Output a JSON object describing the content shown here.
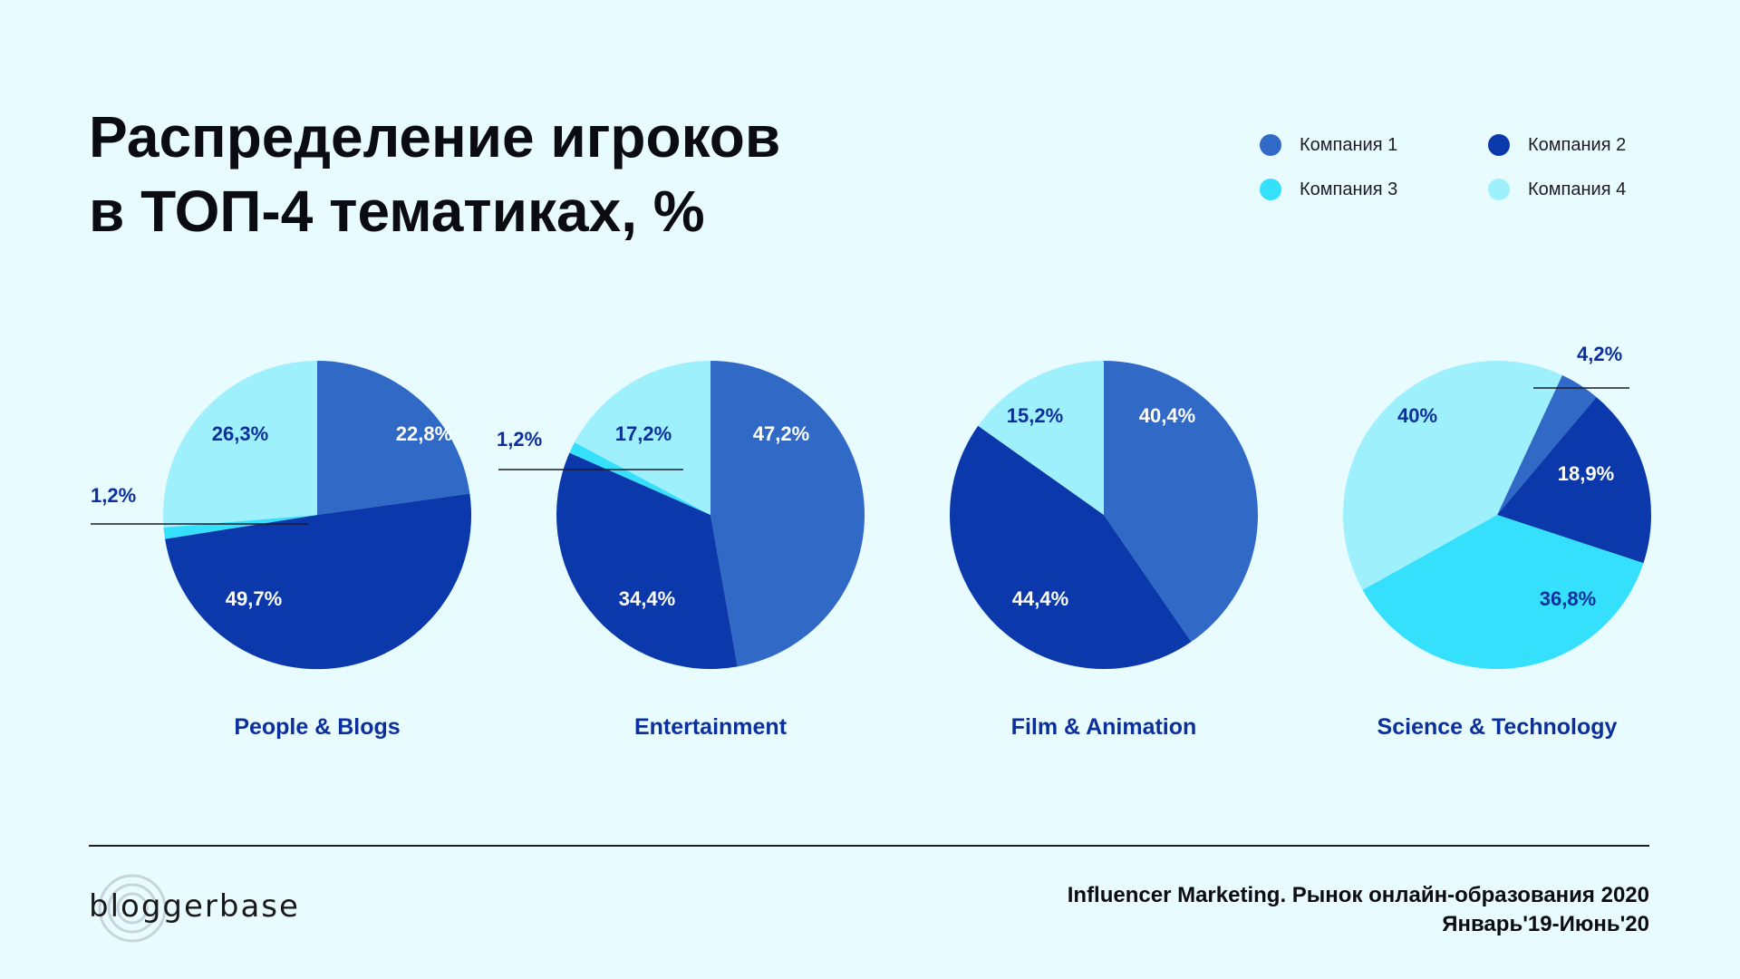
{
  "title": {
    "line1": "Распределение игроков",
    "line2": "в ТОП-4 тематиках, %"
  },
  "legend": [
    {
      "label": "Компания 1",
      "color": "#3069c6"
    },
    {
      "label": "Компания 2",
      "color": "#0b39ab"
    },
    {
      "label": "Компания 3",
      "color": "#35e0fc"
    },
    {
      "label": "Компания 4",
      "color": "#9ff0fd"
    }
  ],
  "chart_data": [
    {
      "type": "pie",
      "title": "People & Blogs",
      "series": [
        "Компания 1",
        "Компания 2",
        "Компания 3",
        "Компания 4"
      ],
      "values": [
        22.8,
        49.7,
        1.2,
        26.3
      ],
      "labels": [
        "22,8%",
        "49,7%",
        "1,2%",
        "26,3%"
      ]
    },
    {
      "type": "pie",
      "title": "Entertainment",
      "series": [
        "Компания 1",
        "Компания 2",
        "Компания 3",
        "Компания 4"
      ],
      "values": [
        47.2,
        34.4,
        1.2,
        17.2
      ],
      "labels": [
        "47,2%",
        "34,4%",
        "1,2%",
        "17,2%"
      ]
    },
    {
      "type": "pie",
      "title": "Film & Animation",
      "series": [
        "Компания 1",
        "Компания 2",
        "Компания 3",
        "Компания 4"
      ],
      "values": [
        40.4,
        44.4,
        0,
        15.2
      ],
      "labels": [
        "40,4%",
        "44,4%",
        "",
        "15,2%"
      ]
    },
    {
      "type": "pie",
      "title": "Science & Technology",
      "series": [
        "Компания 1",
        "Компания 2",
        "Компания 3",
        "Компания 4"
      ],
      "values": [
        4.2,
        18.9,
        36.8,
        40
      ],
      "labels": [
        "4,2%",
        "18,9%",
        "36,8%",
        "40%"
      ]
    }
  ],
  "logo": {
    "text": "bloggerbase"
  },
  "source": {
    "line1": "Influencer Marketing. Рынок онлайн-образования 2020",
    "line2": "Январь'19-Июнь'20"
  }
}
